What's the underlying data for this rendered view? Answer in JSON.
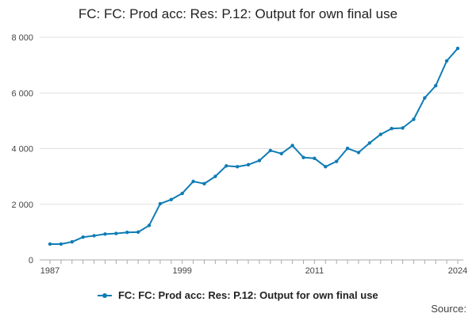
{
  "chart_data": {
    "type": "line",
    "title": "FC: FC: Prod acc: Res: P.12: Output for own final use",
    "xlabel": "",
    "ylabel": "",
    "x": [
      1987,
      1988,
      1989,
      1990,
      1991,
      1992,
      1993,
      1994,
      1995,
      1996,
      1997,
      1998,
      1999,
      2000,
      2001,
      2002,
      2003,
      2004,
      2005,
      2006,
      2007,
      2008,
      2009,
      2010,
      2011,
      2012,
      2013,
      2014,
      2015,
      2016,
      2017,
      2018,
      2019,
      2020,
      2021,
      2022,
      2023,
      2024
    ],
    "series": [
      {
        "name": "FC: FC: Prod acc: Res: P.12: Output for own final use",
        "color": "#0f7cb5",
        "values": [
          570,
          570,
          650,
          820,
          870,
          930,
          950,
          990,
          1000,
          1240,
          2020,
          2170,
          2390,
          2820,
          2740,
          3000,
          3380,
          3350,
          3420,
          3570,
          3930,
          3820,
          4110,
          3680,
          3650,
          3350,
          3540,
          4010,
          3860,
          4200,
          4510,
          4720,
          4740,
          5050,
          5820,
          6260,
          7150,
          7600
        ]
      }
    ],
    "ylim": [
      0,
      8000
    ],
    "yticks": [
      0,
      2000,
      4000,
      6000,
      8000
    ],
    "ytick_labels": [
      "0",
      "2 000",
      "4 000",
      "6 000",
      "8 000"
    ],
    "xticks": [
      1987,
      1999,
      2011,
      2024
    ],
    "xtick_labels": [
      "1987",
      "1999",
      "2011",
      "2024"
    ],
    "grid": true,
    "legend_position": "bottom-center"
  },
  "legend": {
    "label": "FC: FC: Prod acc: Res: P.12: Output for own final use"
  },
  "footer": {
    "source_label": "Source:"
  },
  "colors": {
    "series": "#0f7cb5",
    "grid": "#e0e0e0",
    "axis": "#aaaaaa"
  }
}
